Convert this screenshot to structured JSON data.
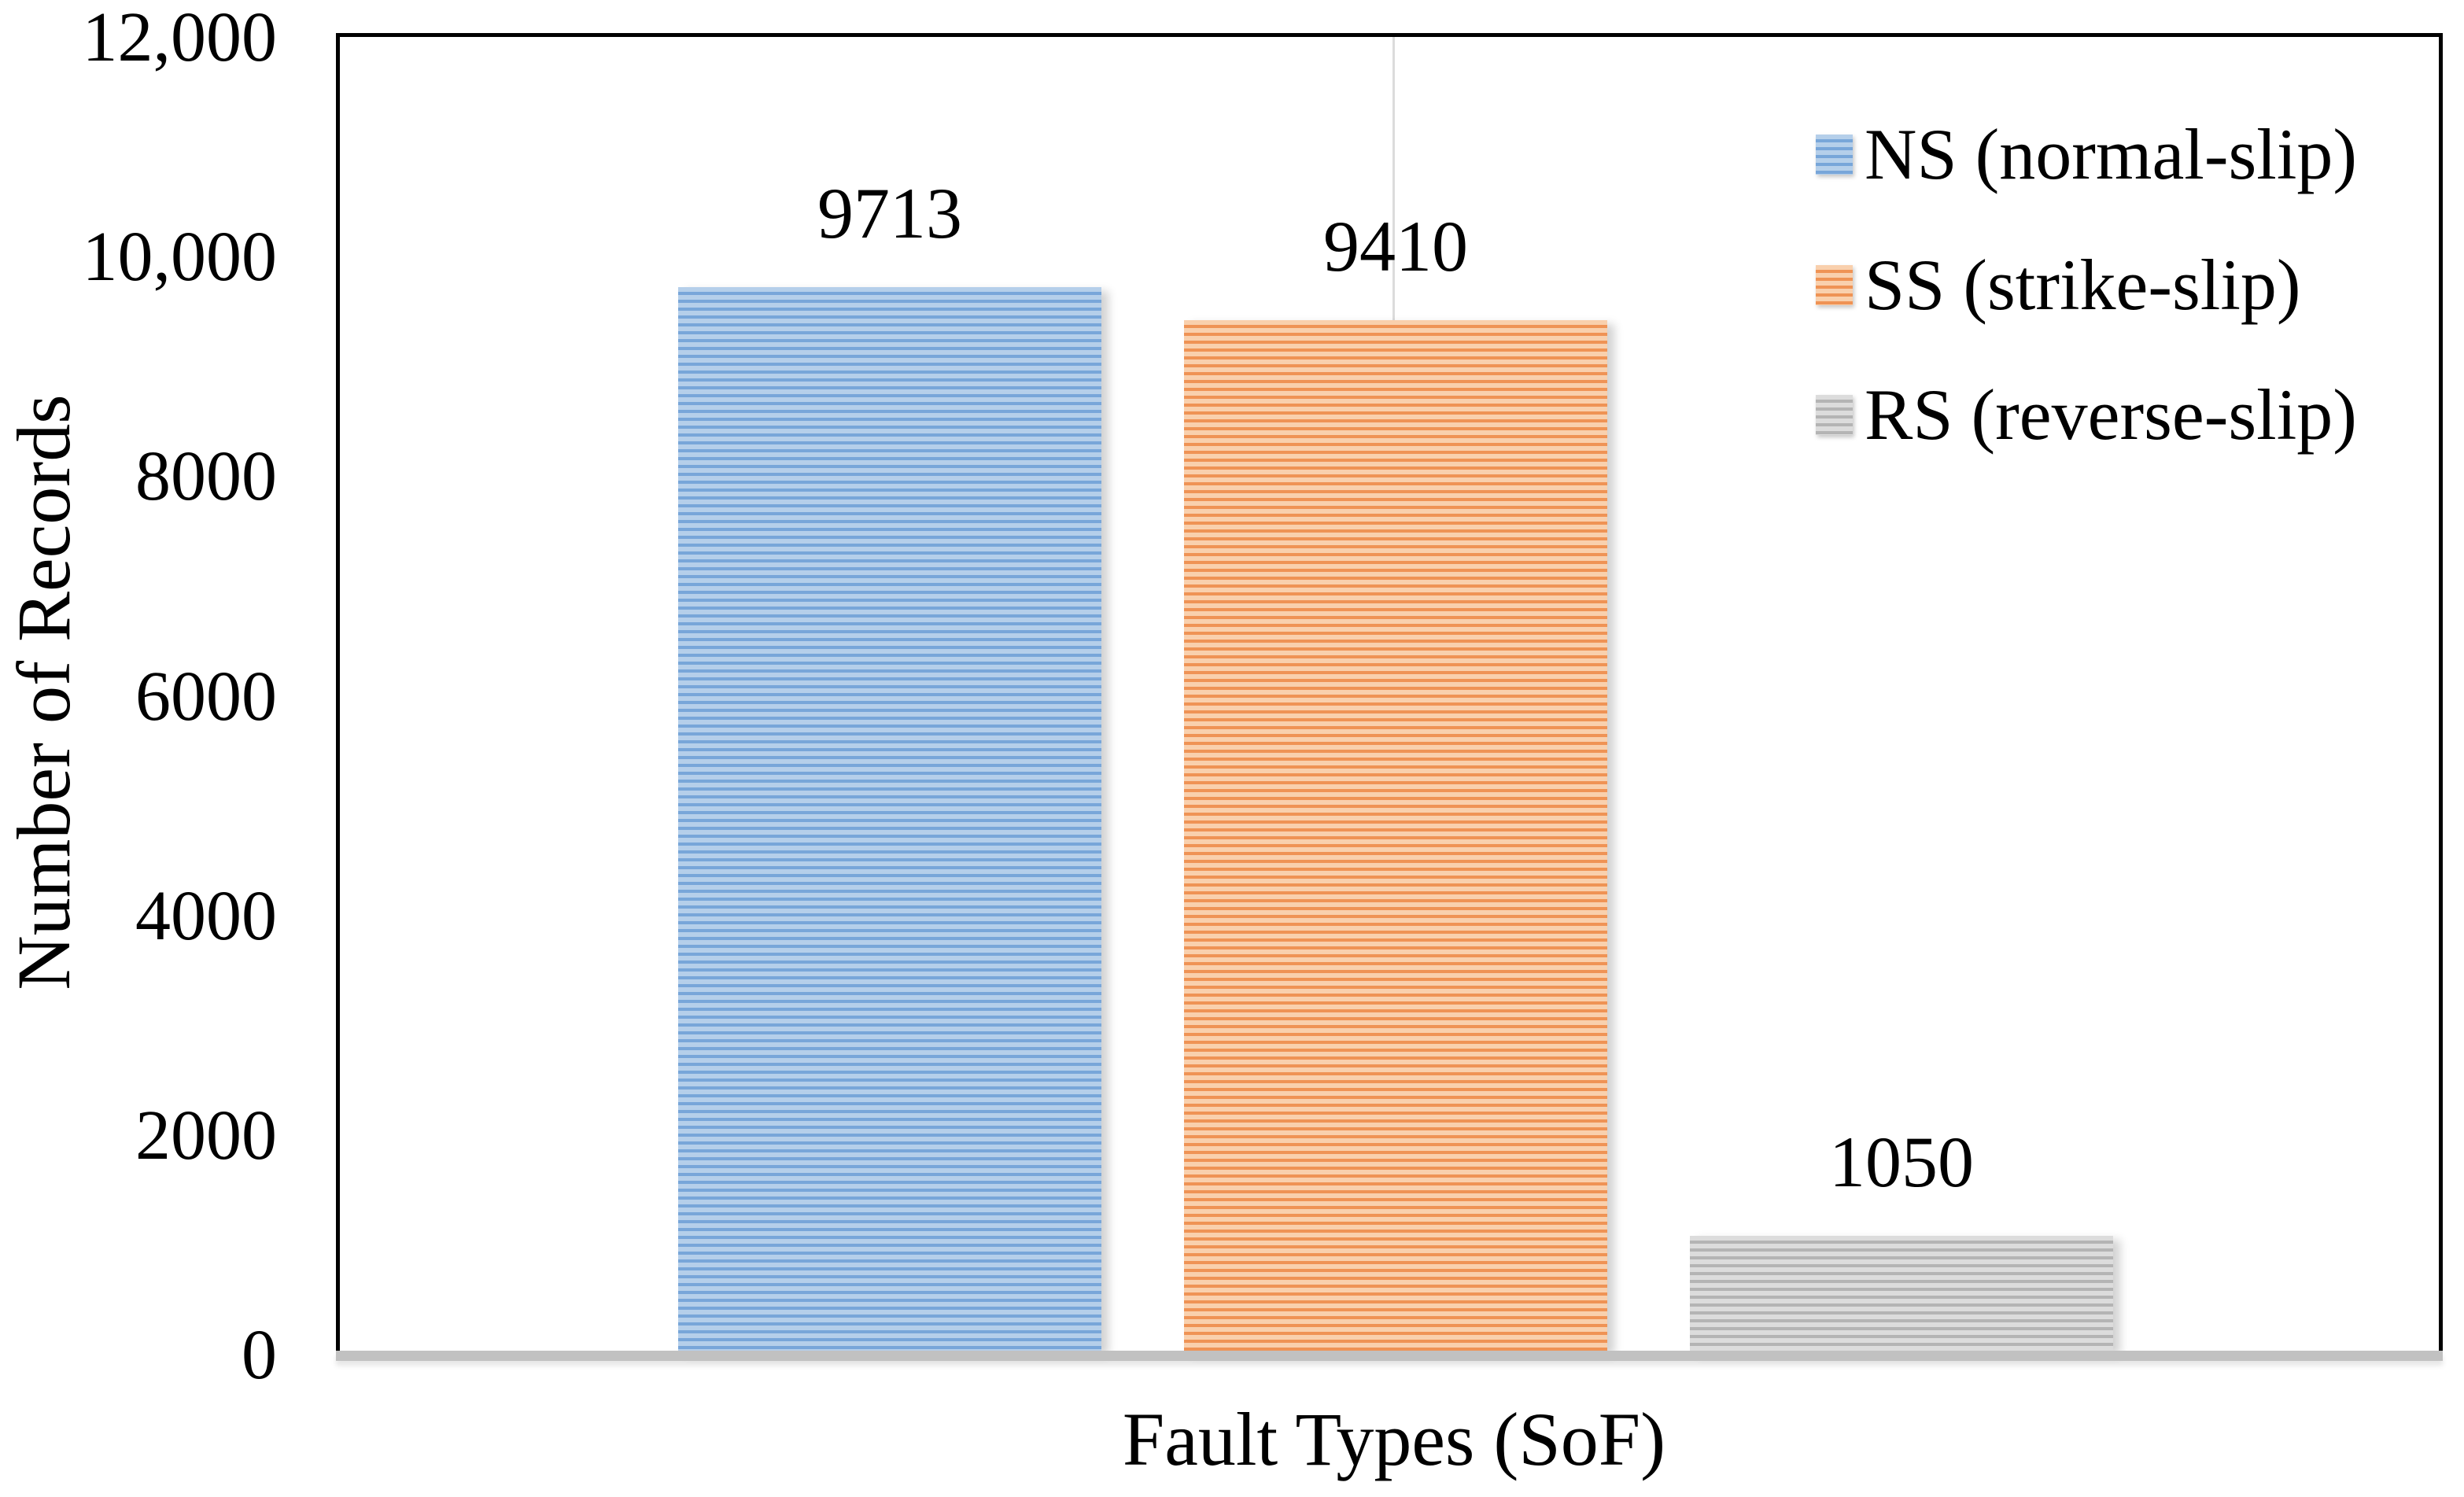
{
  "chart_data": {
    "type": "bar",
    "title": "",
    "xlabel": "Fault Types (SoF)",
    "ylabel": "Number of Records",
    "ylim": [
      0,
      12000
    ],
    "grid": {
      "horizontal": false,
      "vertical_center_line": true
    },
    "legend_position": "top-right",
    "pattern": "light-horizontal-stripes",
    "yticks": [
      {
        "value": 0,
        "label": "0"
      },
      {
        "value": 2000,
        "label": "2000"
      },
      {
        "value": 4000,
        "label": "4000"
      },
      {
        "value": 6000,
        "label": "6000"
      },
      {
        "value": 8000,
        "label": "8000"
      },
      {
        "value": 10000,
        "label": "10,000"
      },
      {
        "value": 12000,
        "label": "12,000"
      }
    ],
    "categories": [
      "NS",
      "SS",
      "RS"
    ],
    "values": [
      9713,
      9410,
      1050
    ],
    "bar_labels": [
      "9713",
      "9410",
      "1050"
    ],
    "series": [
      {
        "name": "NS (normal-slip)",
        "value": 9713,
        "color_light": "#b5cfea",
        "color_dark": "#78a6d9"
      },
      {
        "name": "SS (strike-slip)",
        "value": 9410,
        "color_light": "#f9d0ad",
        "color_dark": "#ef9355"
      },
      {
        "name": "RS (reverse-slip)",
        "value": 1050,
        "color_light": "#dcdcdc",
        "color_dark": "#b4b4b4"
      }
    ]
  },
  "colors": {
    "plot_border": "#000000",
    "baseline": "#c1c1c1",
    "gridline": "#dcdcdc",
    "text": "#000000",
    "background": "#ffffff"
  }
}
